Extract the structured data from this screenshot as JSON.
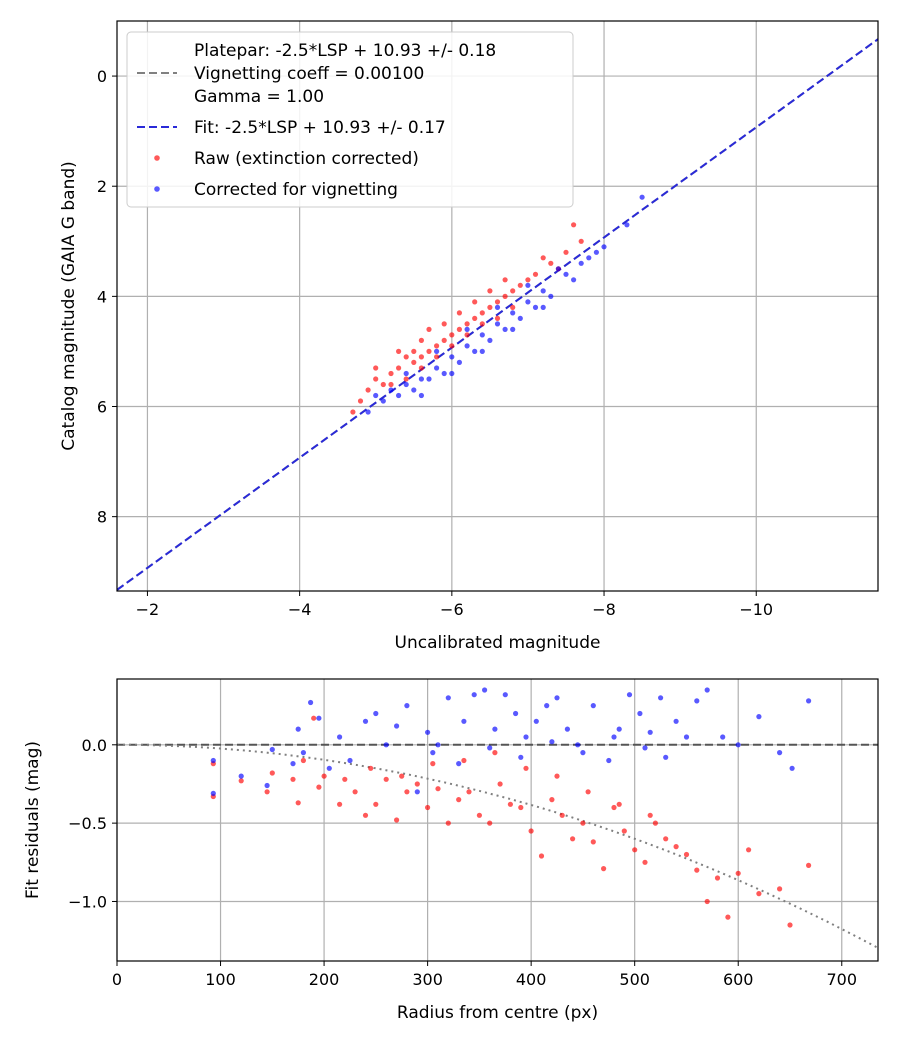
{
  "chart_data": [
    {
      "type": "scatter",
      "xlabel": "Uncalibrated magnitude",
      "ylabel": "Catalog magnitude (GAIA G band)",
      "xlim": [
        -1.6,
        -11.6
      ],
      "ylim": [
        9.35,
        -1.0
      ],
      "x_inverted": true,
      "y_inverted": true,
      "xticks": [
        -2,
        -4,
        -6,
        -8,
        -10
      ],
      "xtick_labels": [
        "−2",
        "−4",
        "−6",
        "−8",
        "−10"
      ],
      "yticks": [
        0,
        2,
        4,
        6,
        8
      ],
      "ytick_labels": [
        "0",
        "2",
        "4",
        "6",
        "8"
      ],
      "grid": true,
      "legend": {
        "position": "top-left",
        "entries": [
          {
            "lines": [
              "Platepar: -2.5*LSP + 10.93 +/- 0.18",
              "Vignetting coeff = 0.00100",
              "Gamma = 1.00"
            ],
            "style": "dashed-line",
            "color": "#808080"
          },
          {
            "lines": [
              "Fit: -2.5*LSP + 10.93 +/- 0.17"
            ],
            "style": "dashed-line",
            "color": "#2a2ad8"
          },
          {
            "lines": [
              "Raw (extinction corrected)"
            ],
            "style": "dot",
            "color": "#ff0000"
          },
          {
            "lines": [
              "Corrected for vignetting"
            ],
            "style": "dot",
            "color": "#0000ff"
          }
        ]
      },
      "lines": [
        {
          "name": "Platepar",
          "slope": 1.0,
          "intercept": 10.93,
          "color": "#808080",
          "style": "dashed"
        },
        {
          "name": "Fit",
          "slope": 1.0,
          "intercept": 10.93,
          "color": "#2a2ad8",
          "style": "dashed"
        }
      ],
      "series": [
        {
          "name": "Raw (extinction corrected)",
          "color": "#ff0000",
          "points": [
            [
              -5.0,
              5.5
            ],
            [
              -5.1,
              5.6
            ],
            [
              -5.2,
              5.4
            ],
            [
              -5.3,
              5.3
            ],
            [
              -5.4,
              5.5
            ],
            [
              -5.5,
              5.2
            ],
            [
              -5.6,
              5.1
            ],
            [
              -5.7,
              5.0
            ],
            [
              -5.8,
              4.9
            ],
            [
              -5.9,
              4.8
            ],
            [
              -6.0,
              4.7
            ],
            [
              -6.1,
              4.6
            ],
            [
              -6.2,
              4.5
            ],
            [
              -6.3,
              4.4
            ],
            [
              -6.4,
              4.3
            ],
            [
              -6.5,
              4.2
            ],
            [
              -6.6,
              4.1
            ],
            [
              -6.7,
              4.0
            ],
            [
              -6.8,
              3.9
            ],
            [
              -6.9,
              3.8
            ],
            [
              -7.0,
              3.7
            ],
            [
              -7.1,
              3.6
            ],
            [
              -7.3,
              3.4
            ],
            [
              -7.5,
              3.2
            ],
            [
              -7.7,
              3.0
            ],
            [
              -5.2,
              5.6
            ],
            [
              -5.4,
              5.1
            ],
            [
              -5.6,
              5.3
            ],
            [
              -5.8,
              5.1
            ],
            [
              -6.0,
              4.9
            ],
            [
              -6.2,
              4.7
            ],
            [
              -6.4,
              4.5
            ],
            [
              -6.6,
              4.4
            ],
            [
              -4.8,
              5.9
            ],
            [
              -4.9,
              5.7
            ],
            [
              -5.5,
              5.0
            ],
            [
              -5.9,
              4.5
            ],
            [
              -6.3,
              4.1
            ],
            [
              -6.7,
              3.7
            ],
            [
              -7.2,
              3.3
            ],
            [
              -7.6,
              2.7
            ],
            [
              -5.3,
              5.0
            ],
            [
              -5.7,
              4.6
            ],
            [
              -6.1,
              4.3
            ],
            [
              -6.5,
              3.9
            ],
            [
              -4.7,
              6.1
            ],
            [
              -5.0,
              5.3
            ],
            [
              -5.6,
              4.8
            ],
            [
              -6.8,
              4.2
            ],
            [
              -7.4,
              3.5
            ]
          ]
        },
        {
          "name": "Corrected for vignetting",
          "color": "#0000ff",
          "points": [
            [
              -5.0,
              5.8
            ],
            [
              -5.2,
              5.7
            ],
            [
              -5.4,
              5.6
            ],
            [
              -5.6,
              5.5
            ],
            [
              -5.8,
              5.3
            ],
            [
              -6.0,
              5.1
            ],
            [
              -6.2,
              4.9
            ],
            [
              -6.4,
              4.7
            ],
            [
              -6.6,
              4.5
            ],
            [
              -6.8,
              4.3
            ],
            [
              -7.0,
              4.1
            ],
            [
              -7.2,
              3.9
            ],
            [
              -7.5,
              3.6
            ],
            [
              -7.8,
              3.3
            ],
            [
              -8.0,
              3.1
            ],
            [
              -8.5,
              2.2
            ],
            [
              -5.1,
              5.9
            ],
            [
              -5.3,
              5.8
            ],
            [
              -5.5,
              5.7
            ],
            [
              -5.7,
              5.5
            ],
            [
              -5.9,
              5.4
            ],
            [
              -6.1,
              5.2
            ],
            [
              -6.3,
              5.0
            ],
            [
              -6.5,
              4.8
            ],
            [
              -6.7,
              4.6
            ],
            [
              -6.9,
              4.4
            ],
            [
              -7.1,
              4.2
            ],
            [
              -7.3,
              4.0
            ],
            [
              -7.6,
              3.7
            ],
            [
              -7.9,
              3.2
            ],
            [
              -4.9,
              6.1
            ],
            [
              -5.6,
              5.8
            ],
            [
              -6.0,
              5.4
            ],
            [
              -6.4,
              5.0
            ],
            [
              -6.8,
              4.6
            ],
            [
              -7.2,
              4.2
            ],
            [
              -5.4,
              5.4
            ],
            [
              -5.8,
              5.0
            ],
            [
              -6.2,
              4.6
            ],
            [
              -6.6,
              4.2
            ],
            [
              -7.0,
              3.8
            ],
            [
              -7.4,
              3.5
            ],
            [
              -7.7,
              3.4
            ],
            [
              -8.3,
              2.7
            ]
          ]
        }
      ]
    },
    {
      "type": "scatter",
      "xlabel": "Radius from centre (px)",
      "ylabel": "Fit residuals (mag)",
      "xlim": [
        0,
        735
      ],
      "ylim": [
        -1.38,
        0.42
      ],
      "xticks": [
        0,
        100,
        200,
        300,
        400,
        500,
        600,
        700
      ],
      "xtick_labels": [
        "0",
        "100",
        "200",
        "300",
        "400",
        "500",
        "600",
        "700"
      ],
      "yticks": [
        0.0,
        -0.5,
        -1.0
      ],
      "ytick_labels": [
        "0.0",
        "−0.5",
        "−1.0"
      ],
      "grid": true,
      "lines": [
        {
          "name": "zero",
          "type": "horizontal",
          "y": 0.0,
          "color": "#555555",
          "style": "dashed"
        },
        {
          "name": "vignetting model",
          "type": "quadratic",
          "a": -2.4e-06,
          "color": "#808080",
          "style": "dotted"
        }
      ],
      "series": [
        {
          "name": "Raw",
          "color": "#ff0000",
          "points": [
            [
              93,
              -0.33
            ],
            [
              93,
              -0.12
            ],
            [
              120,
              -0.23
            ],
            [
              145,
              -0.3
            ],
            [
              150,
              -0.18
            ],
            [
              170,
              -0.22
            ],
            [
              175,
              -0.37
            ],
            [
              180,
              -0.1
            ],
            [
              190,
              0.17
            ],
            [
              195,
              -0.27
            ],
            [
              200,
              -0.2
            ],
            [
              215,
              -0.38
            ],
            [
              220,
              -0.22
            ],
            [
              230,
              -0.3
            ],
            [
              240,
              -0.45
            ],
            [
              250,
              -0.38
            ],
            [
              260,
              -0.22
            ],
            [
              270,
              -0.48
            ],
            [
              280,
              -0.3
            ],
            [
              290,
              -0.25
            ],
            [
              300,
              -0.4
            ],
            [
              310,
              -0.28
            ],
            [
              320,
              -0.5
            ],
            [
              330,
              -0.35
            ],
            [
              340,
              -0.3
            ],
            [
              350,
              -0.45
            ],
            [
              360,
              -0.5
            ],
            [
              370,
              -0.25
            ],
            [
              380,
              -0.38
            ],
            [
              390,
              -0.4
            ],
            [
              400,
              -0.55
            ],
            [
              410,
              -0.71
            ],
            [
              420,
              -0.35
            ],
            [
              430,
              -0.45
            ],
            [
              440,
              -0.6
            ],
            [
              450,
              -0.5
            ],
            [
              460,
              -0.62
            ],
            [
              470,
              -0.79
            ],
            [
              480,
              -0.4
            ],
            [
              490,
              -0.55
            ],
            [
              500,
              -0.67
            ],
            [
              510,
              -0.75
            ],
            [
              520,
              -0.5
            ],
            [
              530,
              -0.6
            ],
            [
              540,
              -0.65
            ],
            [
              550,
              -0.7
            ],
            [
              560,
              -0.8
            ],
            [
              570,
              -1.0
            ],
            [
              580,
              -0.85
            ],
            [
              590,
              -1.1
            ],
            [
              600,
              -0.82
            ],
            [
              610,
              -0.67
            ],
            [
              620,
              -0.95
            ],
            [
              640,
              -0.92
            ],
            [
              650,
              -1.15
            ],
            [
              668,
              -0.77
            ],
            [
              335,
              -0.1
            ],
            [
              365,
              -0.05
            ],
            [
              395,
              -0.15
            ],
            [
              425,
              -0.2
            ],
            [
              455,
              -0.3
            ],
            [
              485,
              -0.38
            ],
            [
              515,
              -0.45
            ],
            [
              245,
              -0.15
            ],
            [
              275,
              -0.2
            ],
            [
              305,
              -0.12
            ]
          ]
        },
        {
          "name": "Corrected",
          "color": "#0000ff",
          "points": [
            [
              93,
              -0.31
            ],
            [
              93,
              -0.1
            ],
            [
              120,
              -0.2
            ],
            [
              145,
              -0.26
            ],
            [
              150,
              -0.03
            ],
            [
              170,
              -0.12
            ],
            [
              175,
              0.1
            ],
            [
              180,
              -0.05
            ],
            [
              187,
              0.27
            ],
            [
              195,
              0.17
            ],
            [
              205,
              -0.15
            ],
            [
              215,
              0.05
            ],
            [
              225,
              -0.1
            ],
            [
              240,
              0.15
            ],
            [
              250,
              0.2
            ],
            [
              260,
              0.0
            ],
            [
              270,
              0.12
            ],
            [
              280,
              0.25
            ],
            [
              290,
              -0.3
            ],
            [
              300,
              0.08
            ],
            [
              310,
              0.0
            ],
            [
              320,
              0.3
            ],
            [
              335,
              0.15
            ],
            [
              345,
              0.32
            ],
            [
              355,
              0.35
            ],
            [
              365,
              0.1
            ],
            [
              375,
              0.32
            ],
            [
              385,
              0.2
            ],
            [
              395,
              0.05
            ],
            [
              405,
              0.15
            ],
            [
              415,
              0.25
            ],
            [
              425,
              0.3
            ],
            [
              435,
              0.1
            ],
            [
              445,
              0.0
            ],
            [
              460,
              0.25
            ],
            [
              475,
              -0.1
            ],
            [
              485,
              0.1
            ],
            [
              495,
              0.32
            ],
            [
              505,
              0.2
            ],
            [
              515,
              0.08
            ],
            [
              525,
              0.3
            ],
            [
              540,
              0.15
            ],
            [
              550,
              0.05
            ],
            [
              560,
              0.28
            ],
            [
              570,
              0.35
            ],
            [
              585,
              0.05
            ],
            [
              600,
              0.0
            ],
            [
              620,
              0.18
            ],
            [
              640,
              -0.05
            ],
            [
              652,
              -0.15
            ],
            [
              668,
              0.28
            ],
            [
              305,
              -0.05
            ],
            [
              330,
              -0.12
            ],
            [
              360,
              -0.02
            ],
            [
              390,
              -0.08
            ],
            [
              420,
              0.02
            ],
            [
              450,
              -0.05
            ],
            [
              480,
              0.05
            ],
            [
              510,
              -0.02
            ],
            [
              530,
              -0.08
            ]
          ]
        }
      ]
    }
  ]
}
